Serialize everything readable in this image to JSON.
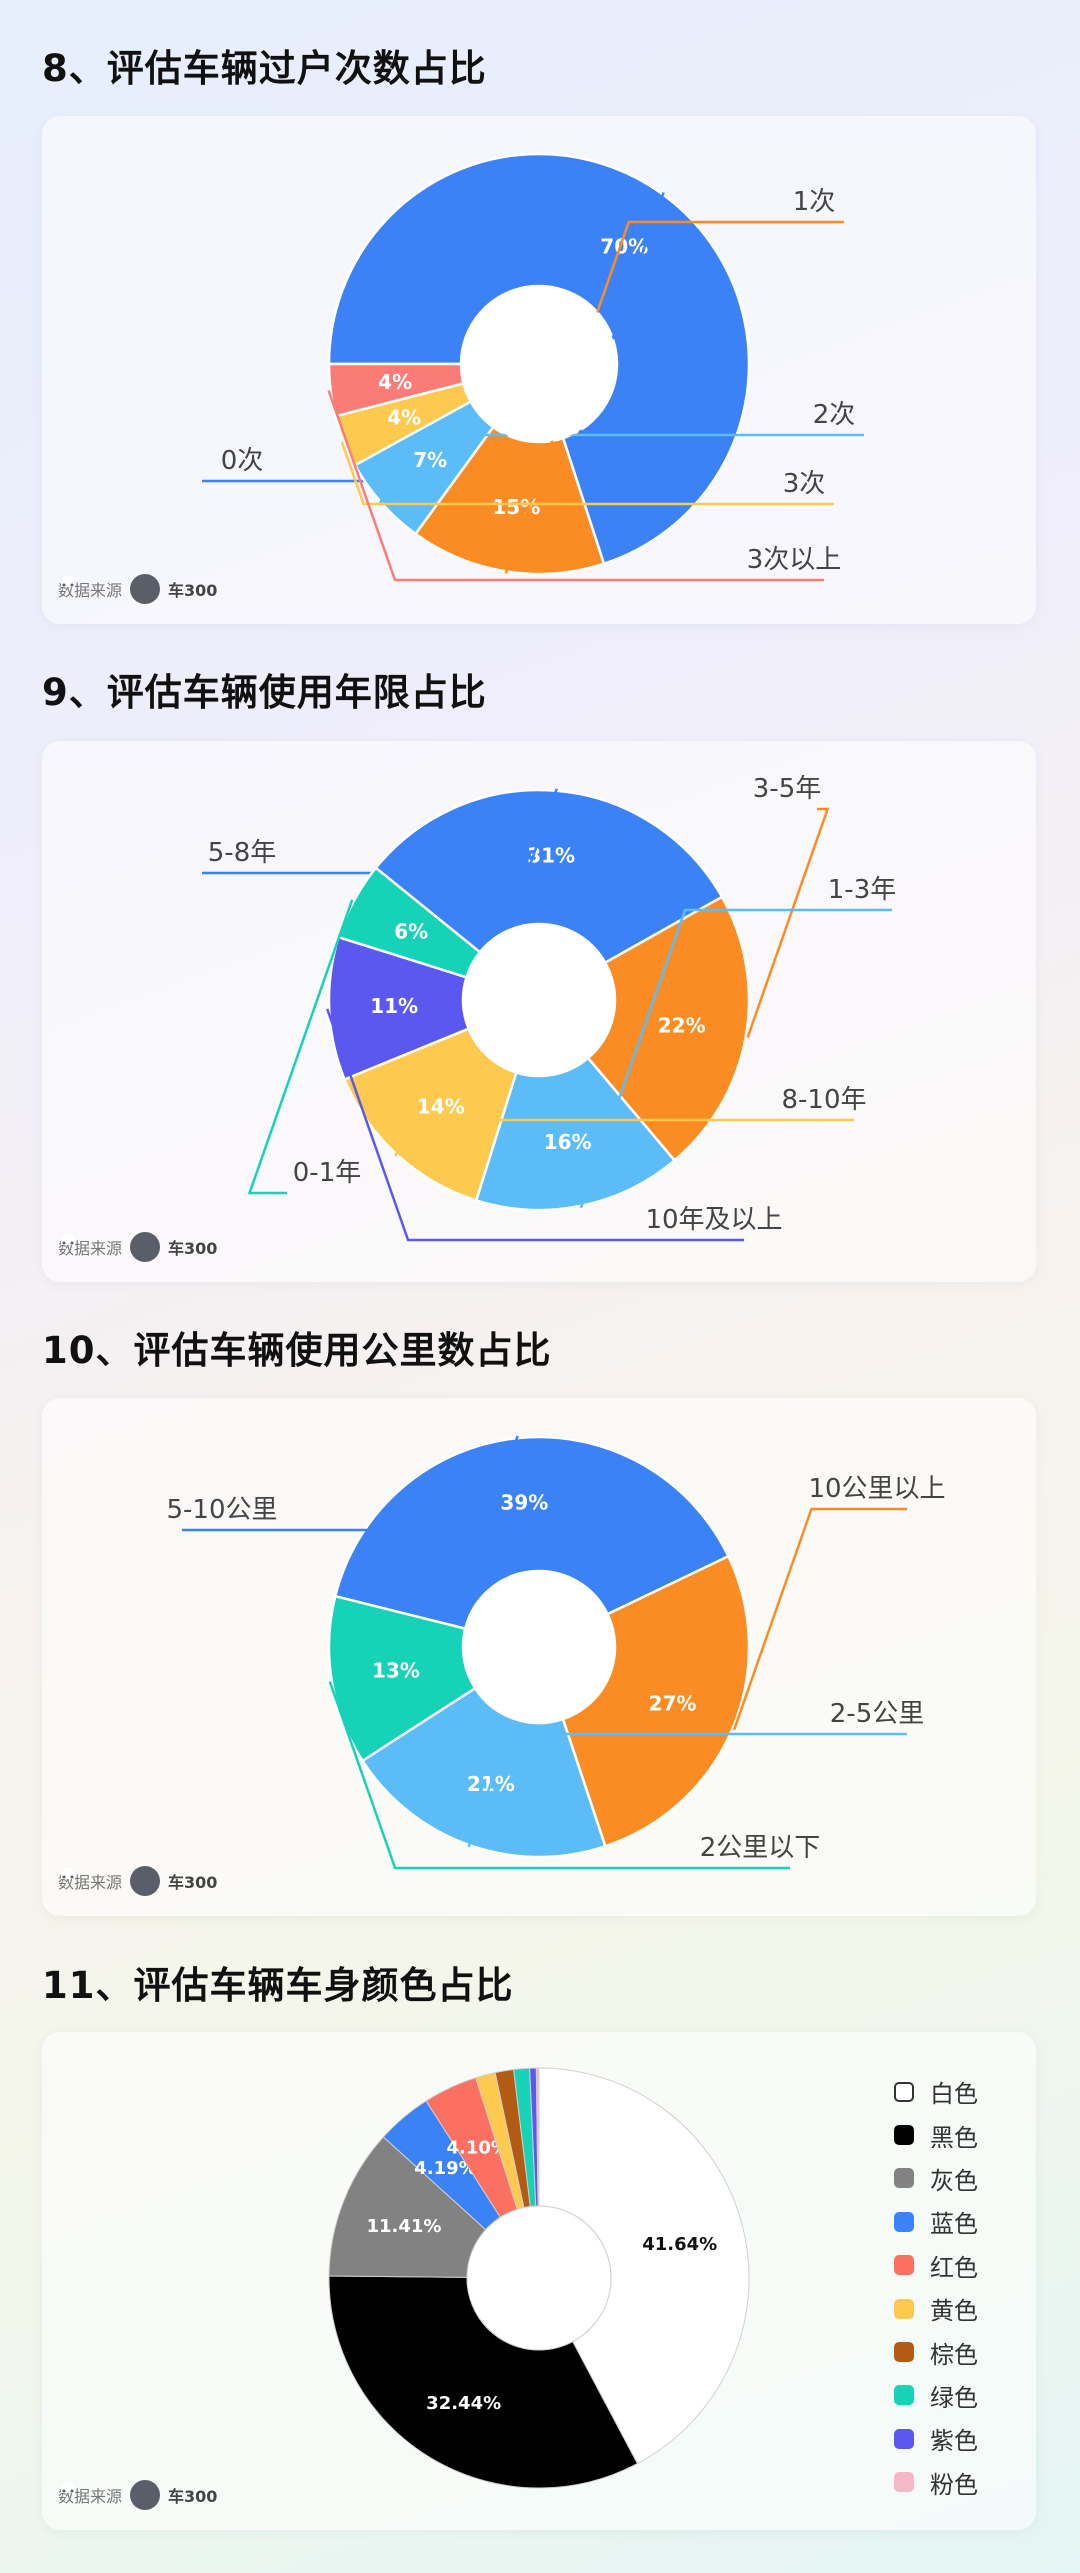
{
  "source_label": "数据来源",
  "brand": "车300",
  "chart_data": [
    {
      "type": "pie",
      "title": "8、评估车辆过户次数占比",
      "categories": [
        "0次",
        "1次",
        "2次",
        "3次",
        "3次以上"
      ],
      "values": [
        70,
        15,
        7,
        4,
        4
      ],
      "value_labels": [
        "70%",
        "15%",
        "7%",
        "4%",
        "4%"
      ],
      "colors": [
        "#3b82f6",
        "#fb8c23",
        "#5bbcf8",
        "#fdc94f",
        "#fb7c76"
      ],
      "donut": true,
      "start_angle_deg": 180
    },
    {
      "type": "pie",
      "title": "9、评估车辆使用年限占比",
      "categories": [
        "5-8年",
        "3-5年",
        "1-3年",
        "8-10年",
        "10年及以上",
        "0-1年"
      ],
      "values": [
        31,
        22,
        16,
        14,
        11,
        6
      ],
      "value_labels": [
        "31%",
        "22%",
        "16%",
        "14%",
        "11%",
        "6%"
      ],
      "colors": [
        "#3b82f6",
        "#fb8c23",
        "#5bbcf8",
        "#fdc94f",
        "#5b58ef",
        "#16d2b6"
      ],
      "donut": true,
      "start_angle_deg": 219
    },
    {
      "type": "pie",
      "title": "10、评估车辆使用公里数占比",
      "categories": [
        "5-10公里",
        "10公里以上",
        "2-5公里",
        "2公里以下"
      ],
      "values": [
        39,
        27,
        21,
        13
      ],
      "value_labels": [
        "39%",
        "27%",
        "21%",
        "13%"
      ],
      "colors": [
        "#3b82f6",
        "#fb8c23",
        "#5bbcf8",
        "#16d2b6"
      ],
      "donut": true,
      "start_angle_deg": 194
    },
    {
      "type": "pie",
      "title": "11、评估车辆车身颜色占比",
      "categories": [
        "白色",
        "黑色",
        "灰色",
        "蓝色",
        "红色",
        "黄色",
        "棕色",
        "绿色",
        "紫色",
        "粉色"
      ],
      "values": [
        41.64,
        32.44,
        11.41,
        4.19,
        4.1,
        1.5,
        1.4,
        1.2,
        0.5,
        0.2
      ],
      "value_labels": [
        "41.64%",
        "32.44%",
        "11.41%",
        "4.19%",
        "4.10%",
        "",
        "",
        "",
        "",
        ""
      ],
      "colors": [
        "#ffffff",
        "#000000",
        "#828282",
        "#3b82f6",
        "#fb7060",
        "#fdc94f",
        "#b35a14",
        "#16d2b6",
        "#5b58ef",
        "#f6b8c4"
      ],
      "donut": true,
      "start_angle_deg": 270,
      "legend_position": "right"
    }
  ]
}
